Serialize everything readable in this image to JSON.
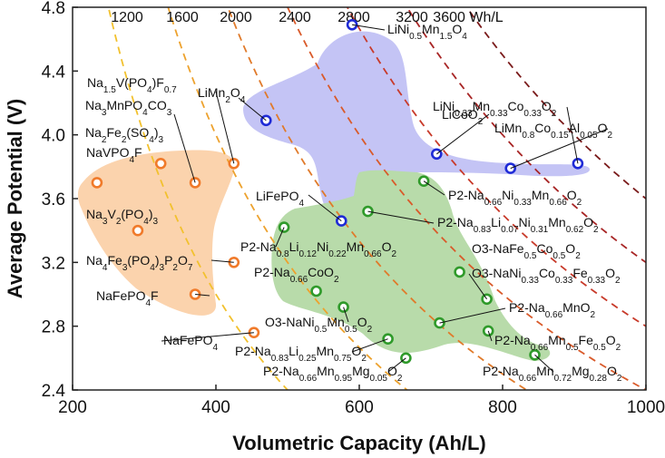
{
  "chart_data": {
    "type": "scatter",
    "xlabel": "Volumetric Capacity (Ah/L)",
    "ylabel": "Average Potential (V)",
    "xlim": [
      200,
      1000
    ],
    "ylim": [
      2.4,
      4.8
    ],
    "xticks": [
      "200",
      "400",
      "600",
      "800",
      "1000"
    ],
    "yticks": [
      "2.4",
      "2.8",
      "3.2",
      "3.6",
      "4.0",
      "4.4",
      "4.8"
    ],
    "energy_density_lines": [
      {
        "value": 1200,
        "label": "1200",
        "color": "#f2c12e"
      },
      {
        "value": 1600,
        "label": "1600",
        "color": "#eda22e"
      },
      {
        "value": 2000,
        "label": "2000",
        "color": "#e07a2a"
      },
      {
        "value": 2400,
        "label": "2400",
        "color": "#d95a2a"
      },
      {
        "value": 2800,
        "label": "2800",
        "color": "#c83a2a"
      },
      {
        "value": 3200,
        "label": "3200",
        "color": "#a82626"
      },
      {
        "value": 3600,
        "label": "3600 Wh/L",
        "color": "#7a1a1a"
      }
    ],
    "series": [
      {
        "group": "polyanion",
        "color": "#f07a2a",
        "region_color": "#fbd3ad",
        "points": [
          {
            "label": "Na1.5V(PO4)F0.7",
            "x": 425,
            "y": 3.82
          },
          {
            "label": "Na3MnPO4CO3",
            "x": 371,
            "y": 3.7
          },
          {
            "label": "Na2Fe2(SO4)3",
            "x": 323,
            "y": 3.82
          },
          {
            "label": "NaVPO4F",
            "x": 234,
            "y": 3.7
          },
          {
            "label": "Na3V2(PO4)3",
            "x": 291,
            "y": 3.4
          },
          {
            "label": "Na4Fe3(PO4)3P2O7",
            "x": 425,
            "y": 3.2
          },
          {
            "label": "NaFePO4F",
            "x": 371,
            "y": 3.0
          },
          {
            "label": "NaFePO4",
            "x": 453,
            "y": 2.76
          }
        ]
      },
      {
        "group": "li",
        "color": "#1f2bd6",
        "region_color": "#c4c4f5",
        "points": [
          {
            "label": "LiNi0.5Mn1.5O4",
            "x": 590,
            "y": 4.69
          },
          {
            "label": "LiMn2O4",
            "x": 470,
            "y": 4.09
          },
          {
            "label": "LiNi0.33Mn0.33Co0.33O2",
            "x": 905,
            "y": 3.82
          },
          {
            "label": "LiCoO2",
            "x": 708,
            "y": 3.88
          },
          {
            "label": "LiMn0.8Co0.15Al0.05O2",
            "x": 811,
            "y": 3.79
          },
          {
            "label": "LiFePO4",
            "x": 575,
            "y": 3.46
          }
        ]
      },
      {
        "group": "layered-oxide",
        "color": "#2f9a2a",
        "region_color": "#b8dbaa",
        "points": [
          {
            "label": "P2-Na0.66Ni0.33Mn0.66O2",
            "x": 690,
            "y": 3.71
          },
          {
            "label": "P2-Na0.83Li0.07Ni0.31Mn0.62O2",
            "x": 612,
            "y": 3.52
          },
          {
            "label": "P2-Na0.8Li0.12Ni0.22Mn0.66O2",
            "x": 495,
            "y": 3.42
          },
          {
            "label": "O3-NaFe0.5Co0.5O2",
            "x": 740,
            "y": 3.14
          },
          {
            "label": "O3-NaNi0.33Co0.33Fe0.33O2",
            "x": 778,
            "y": 2.97
          },
          {
            "label": "P2-Na0.66CoO2",
            "x": 540,
            "y": 3.02
          },
          {
            "label": "O3-NaNi0.5Mn0.5O2",
            "x": 578,
            "y": 2.92
          },
          {
            "label": "P2-Na0.66MnO2",
            "x": 712,
            "y": 2.82
          },
          {
            "label": "P2-Na0.66Mn0.5Fe0.5O2",
            "x": 780,
            "y": 2.77
          },
          {
            "label": "P2-Na0.83Li0.25Mn0.75O2",
            "x": 640,
            "y": 2.72
          },
          {
            "label": "P2-Na0.66Mn0.95Mg0.05O2",
            "x": 665,
            "y": 2.6
          },
          {
            "label": "P2-Na0.66Mn0.72Mg0.28O2",
            "x": 845,
            "y": 2.62
          }
        ]
      }
    ]
  }
}
